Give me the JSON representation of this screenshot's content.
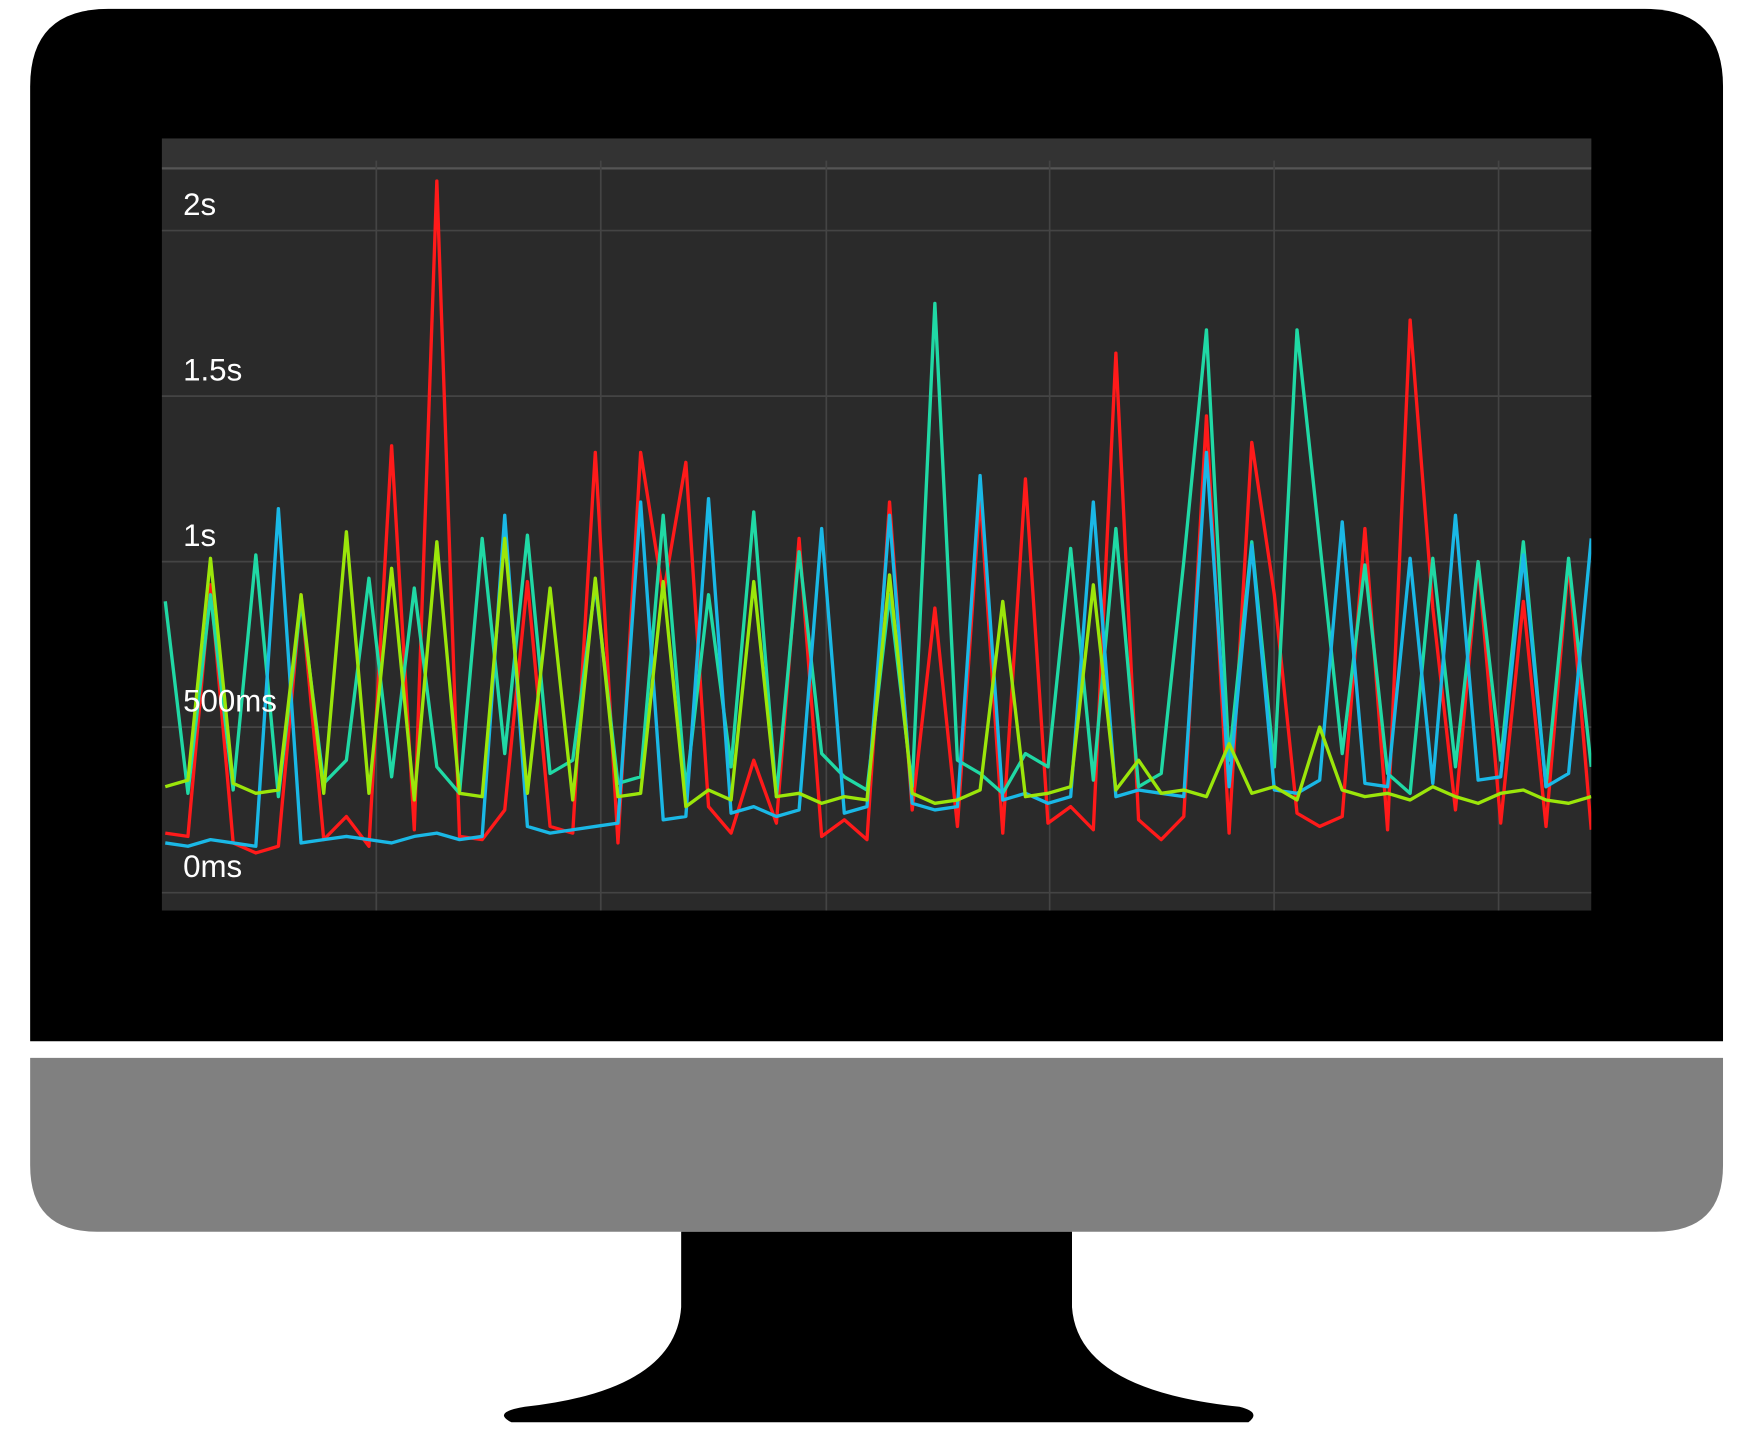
{
  "chart_data": {
    "type": "line",
    "ylim": [
      -54,
      2188
    ],
    "yticks": [
      {
        "value": 0,
        "label": "0ms"
      },
      {
        "value": 500,
        "label": "500ms"
      },
      {
        "value": 1000,
        "label": "1s"
      },
      {
        "value": 1500,
        "label": "1.5s"
      },
      {
        "value": 2000,
        "label": "2s"
      }
    ],
    "grid": true,
    "series": [
      {
        "color": "#ff1a1a",
        "values": [
          180,
          170,
          930,
          150,
          120,
          140,
          900,
          160,
          230,
          140,
          1350,
          190,
          2150,
          170,
          160,
          250,
          940,
          200,
          180,
          1330,
          150,
          1330,
          900,
          1300,
          260,
          180,
          400,
          210,
          1070,
          170,
          220,
          160,
          1180,
          250,
          860,
          200,
          1200,
          180,
          1250,
          210,
          260,
          190,
          1630,
          220,
          160,
          230,
          1440,
          180,
          1360,
          900,
          240,
          200,
          230,
          1100,
          190,
          1730,
          860,
          250,
          1000,
          210,
          880,
          200,
          1000,
          190
        ]
      },
      {
        "color": "#20d9a5",
        "values": [
          880,
          300,
          900,
          310,
          1020,
          290,
          880,
          330,
          400,
          950,
          350,
          920,
          380,
          300,
          1070,
          420,
          1080,
          360,
          400,
          930,
          330,
          350,
          1140,
          310,
          900,
          380,
          1150,
          290,
          1030,
          420,
          350,
          310,
          900,
          320,
          1780,
          400,
          360,
          300,
          420,
          380,
          1040,
          340,
          1100,
          320,
          360,
          1000,
          1700,
          400,
          1060,
          380,
          1700,
          1060,
          420,
          990,
          360,
          300,
          1010,
          380,
          1000,
          400,
          1060,
          320,
          1010,
          380
        ]
      },
      {
        "color": "#1ab8e6",
        "values": [
          150,
          140,
          160,
          150,
          140,
          1160,
          150,
          160,
          170,
          160,
          150,
          170,
          180,
          160,
          170,
          1140,
          200,
          180,
          190,
          200,
          210,
          1180,
          220,
          230,
          1190,
          240,
          260,
          230,
          250,
          1100,
          240,
          260,
          1140,
          270,
          250,
          260,
          1260,
          280,
          300,
          270,
          290,
          1180,
          290,
          310,
          300,
          290,
          1330,
          320,
          1050,
          310,
          300,
          340,
          1120,
          330,
          320,
          1010,
          330,
          1140,
          340,
          350,
          1020,
          320,
          360,
          1070
        ]
      },
      {
        "color": "#9be60a",
        "values": [
          320,
          340,
          1010,
          330,
          300,
          310,
          900,
          300,
          1090,
          300,
          980,
          280,
          1060,
          300,
          290,
          1070,
          300,
          920,
          280,
          950,
          290,
          300,
          940,
          260,
          310,
          280,
          940,
          290,
          300,
          270,
          290,
          280,
          960,
          300,
          270,
          280,
          310,
          880,
          290,
          300,
          320,
          930,
          310,
          400,
          300,
          310,
          290,
          450,
          300,
          320,
          280,
          500,
          310,
          290,
          300,
          280,
          320,
          290,
          270,
          300,
          310,
          280,
          270,
          290
        ]
      }
    ]
  }
}
